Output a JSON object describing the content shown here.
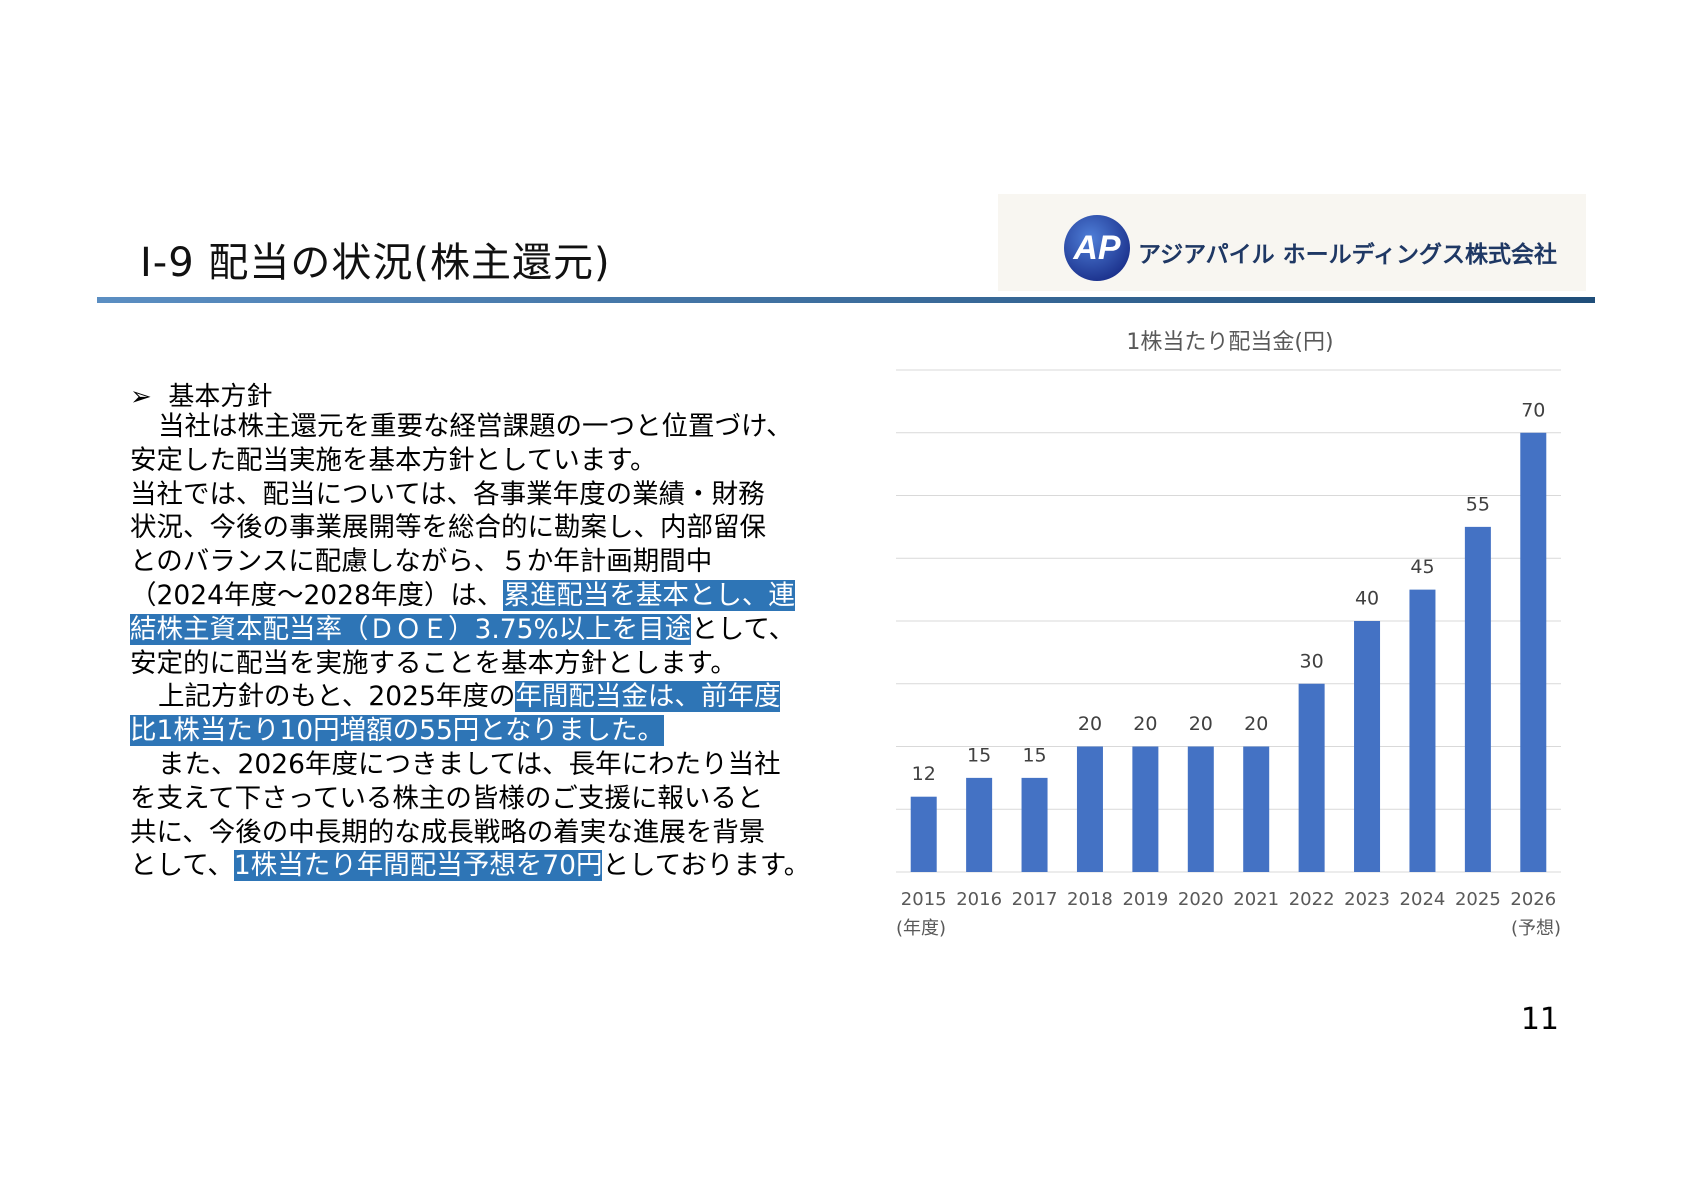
{
  "header": {
    "title": "Ⅰ-9  配当の状況(株主還元)",
    "logo_mark": "AP",
    "company": "アジアパイル ホールディングス株式会社"
  },
  "body": {
    "heading": "基本方針",
    "lines": [
      {
        "indent": true,
        "segments": [
          {
            "text": "当社は株主還元を重要な経営課題の一つと位置づけ、"
          }
        ]
      },
      {
        "segments": [
          {
            "text": "安定した配当実施を基本方針としています。"
          }
        ]
      },
      {
        "segments": [
          {
            "text": "当社では、配当については、各事業年度の業績・財務"
          }
        ]
      },
      {
        "segments": [
          {
            "text": "状況、今後の事業展開等を総合的に勘案し、内部留保"
          }
        ]
      },
      {
        "segments": [
          {
            "text": "とのバランスに配慮しながら、５か年計画期間中"
          }
        ]
      },
      {
        "segments": [
          {
            "text": "（2024年度～2028年度）は、"
          },
          {
            "text": "累進配当を基本とし、連",
            "highlight": true
          }
        ]
      },
      {
        "segments": [
          {
            "text": "結株主資本配当率（ＤＯＥ）3.75%以上を目途",
            "highlight": true
          },
          {
            "text": "として、"
          }
        ]
      },
      {
        "segments": [
          {
            "text": "安定的に配当を実施することを基本方針とします。"
          }
        ]
      },
      {
        "indent": true,
        "segments": [
          {
            "text": "上記方針のもと、2025年度の"
          },
          {
            "text": "年間配当金は、前年度",
            "highlight": true
          }
        ]
      },
      {
        "segments": [
          {
            "text": "比1株当たり10円増額の55円となりました。",
            "highlight": true
          }
        ]
      },
      {
        "indent": true,
        "segments": [
          {
            "text": "また、2026年度につきましては、長年にわたり当社"
          }
        ]
      },
      {
        "segments": [
          {
            "text": "を支えて下さっている株主の皆様のご支援に報いると"
          }
        ]
      },
      {
        "segments": [
          {
            "text": "共に、今後の中長期的な成長戦略の着実な進展を背景"
          }
        ]
      },
      {
        "segments": [
          {
            "text": "として、"
          },
          {
            "text": "1株当たり年間配当予想を70円",
            "highlight": true
          },
          {
            "text": "としております。"
          }
        ]
      }
    ]
  },
  "chart_data": {
    "type": "bar",
    "title": "1株当たり配当金(円)",
    "categories": [
      "2015",
      "2016",
      "2017",
      "2018",
      "2019",
      "2020",
      "2021",
      "2022",
      "2023",
      "2024",
      "2025",
      "2026"
    ],
    "values": [
      12,
      15,
      15,
      20,
      20,
      20,
      20,
      30,
      40,
      45,
      55,
      70
    ],
    "color": "#4472c4",
    "ylim": [
      0,
      80
    ],
    "yticks": [
      0,
      10,
      20,
      30,
      40,
      50,
      60,
      70,
      80
    ],
    "grid": true,
    "annotations": [
      {
        "text": "(年度)",
        "category": 0
      },
      {
        "text": "(予想)",
        "category": 11
      }
    ]
  },
  "page_number": "11"
}
